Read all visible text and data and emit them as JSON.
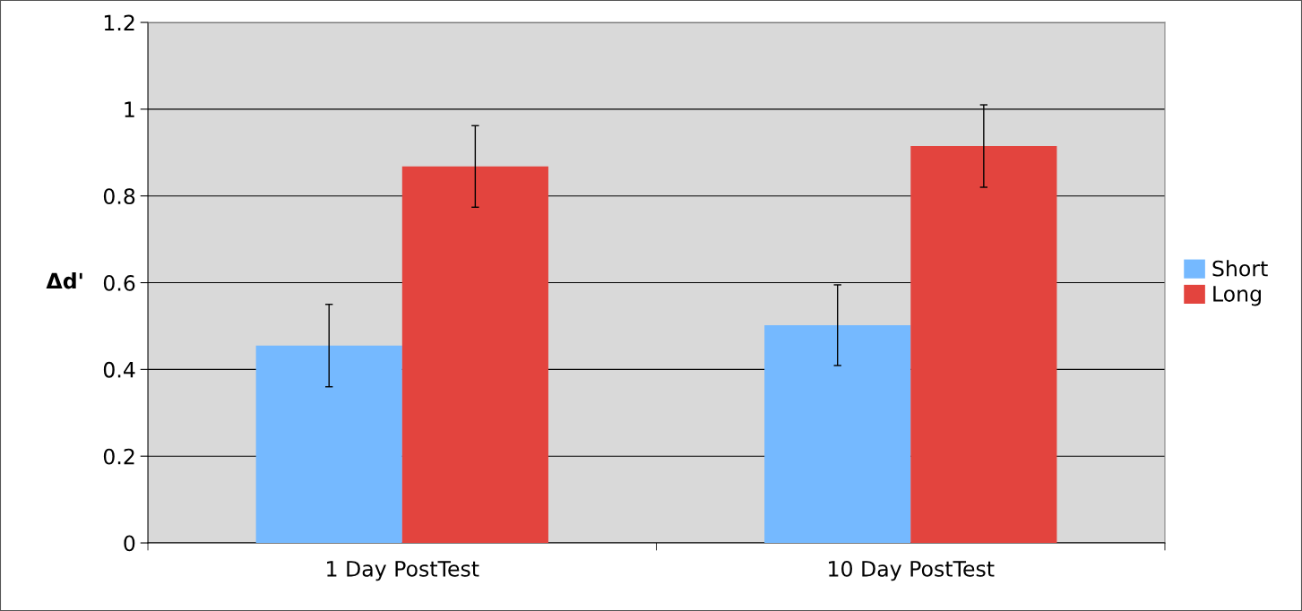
{
  "chart_data": {
    "type": "bar",
    "ylabel": "Δd'",
    "categories": [
      "1 Day PostTest",
      "10 Day PostTest"
    ],
    "series": [
      {
        "name": "Short",
        "color": "#75b9ff",
        "values": [
          0.455,
          0.502
        ],
        "errors": [
          0.095,
          0.093
        ]
      },
      {
        "name": "Long",
        "color": "#e3443e",
        "values": [
          0.868,
          0.915
        ],
        "errors": [
          0.094,
          0.095
        ]
      }
    ],
    "ylim": [
      0,
      1.2
    ],
    "yticks": [
      0,
      0.2,
      0.4,
      0.6,
      0.8,
      1,
      1.2
    ],
    "grid": "y",
    "legend": "right"
  }
}
